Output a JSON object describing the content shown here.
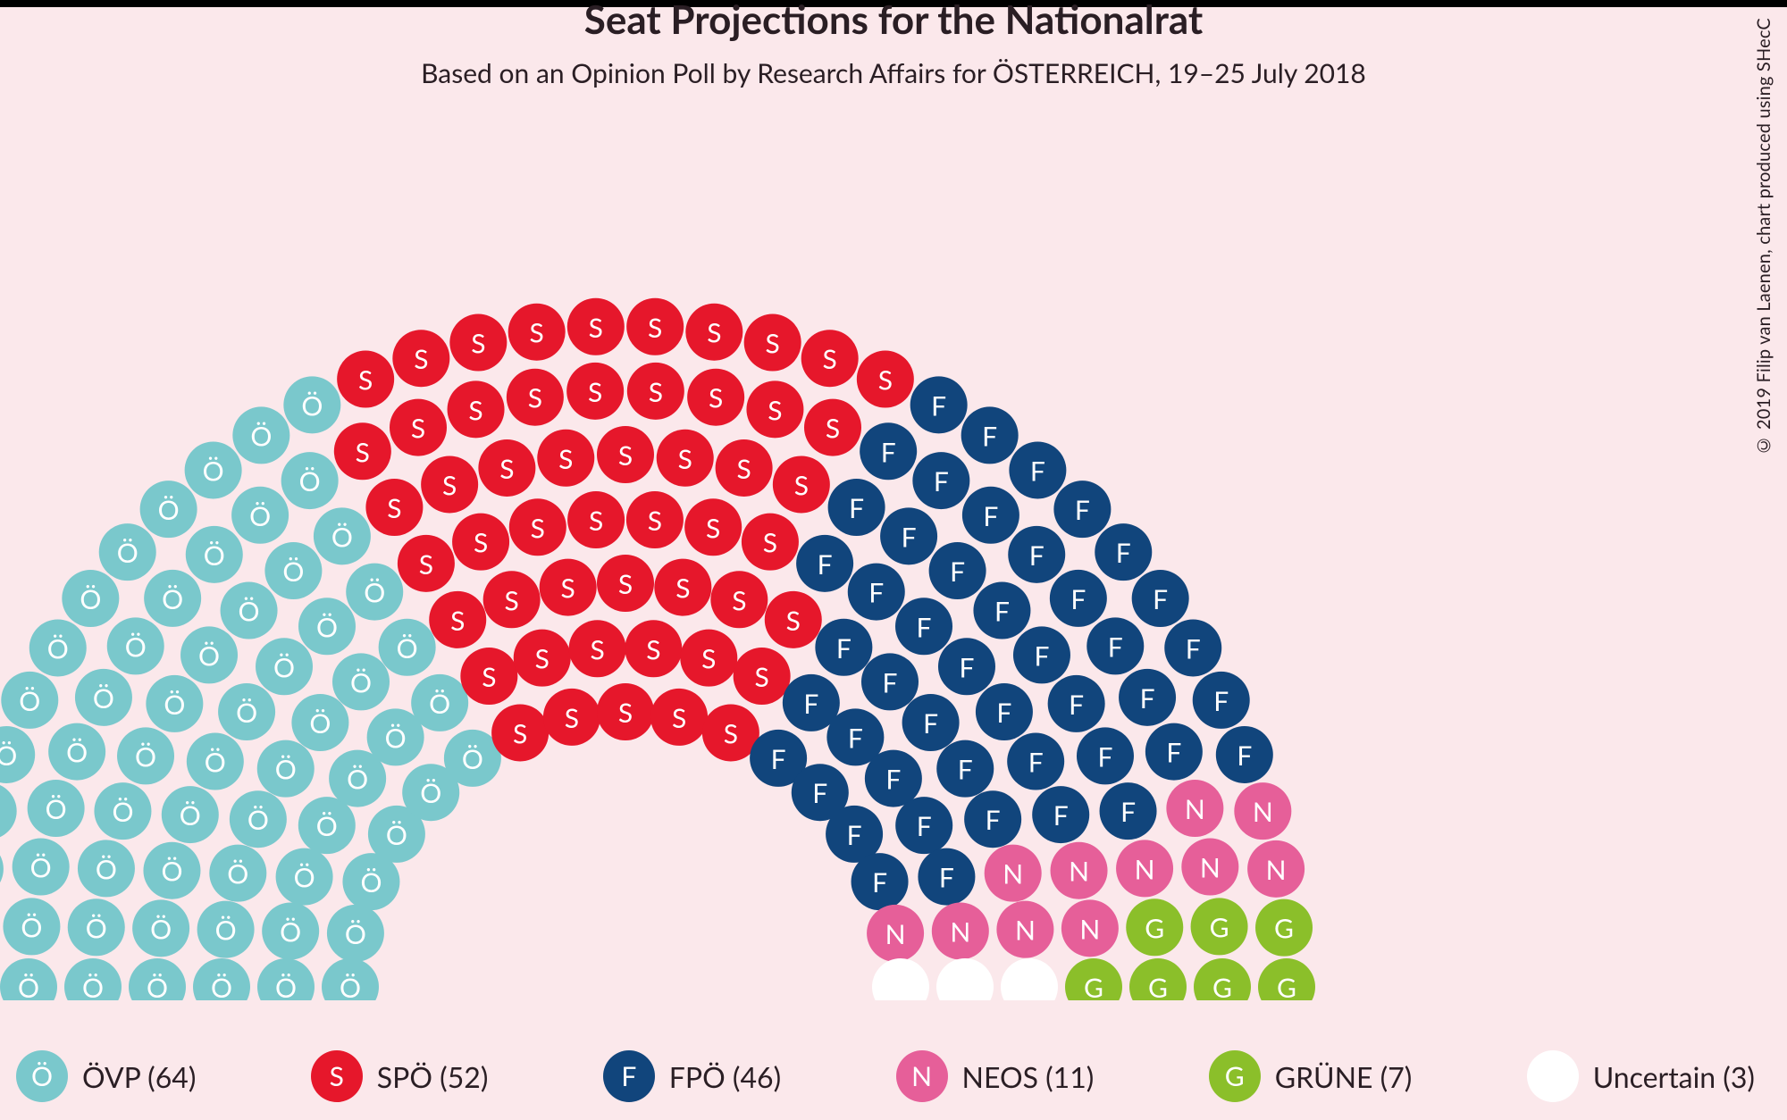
{
  "chart": {
    "type": "hemicycle",
    "title": "Seat Projections for the Nationalrat",
    "subtitle": "Based on an Opinion Poll by Research Affairs for ÖSTERREICH, 19–25 July 2018",
    "credit": "© 2019 Filip van Laenen, chart produced using SHecC",
    "background_color": "#fbe8eb",
    "title_fontsize": 44,
    "subtitle_fontsize": 30,
    "seat_radius": 32,
    "seat_label_fontsize": 30,
    "total_seats": 183,
    "parties": [
      {
        "id": "ovp",
        "name": "ÖVP",
        "seats": 64,
        "letter": "Ö",
        "fill": "#7ac8cc",
        "text": "#ffffff"
      },
      {
        "id": "spo",
        "name": "SPÖ",
        "seats": 52,
        "letter": "S",
        "fill": "#e6172b",
        "text": "#ffffff"
      },
      {
        "id": "fpo",
        "name": "FPÖ",
        "seats": 46,
        "letter": "F",
        "fill": "#11457c",
        "text": "#ffffff"
      },
      {
        "id": "neos",
        "name": "NEOS",
        "seats": 11,
        "letter": "N",
        "fill": "#e65f99",
        "text": "#ffffff"
      },
      {
        "id": "grune",
        "name": "GRÜNE",
        "seats": 7,
        "letter": "G",
        "fill": "#8bbf2a",
        "text": "#ffffff"
      },
      {
        "id": "unc",
        "name": "Uncertain",
        "seats": 3,
        "letter": "",
        "fill": "#ffffff",
        "text": "#ffffff"
      }
    ],
    "legend_fontsize": 32,
    "legend_swatch_radius": 29
  }
}
